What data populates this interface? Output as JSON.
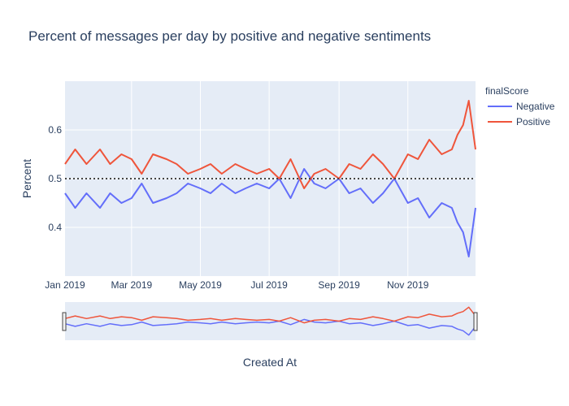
{
  "chart_data": {
    "type": "line",
    "title": "Percent of messages per day by positive and negative sentiments",
    "xlabel": "Created At",
    "ylabel": "Percent",
    "x_start": "2019-01-01",
    "x_end": "2019-12-31",
    "x_ticks": [
      {
        "date": "2019-01-01",
        "label": "Jan 2019"
      },
      {
        "date": "2019-03-01",
        "label": "Mar 2019"
      },
      {
        "date": "2019-05-01",
        "label": "May 2019"
      },
      {
        "date": "2019-07-01",
        "label": "Jul 2019"
      },
      {
        "date": "2019-09-01",
        "label": "Sep 2019"
      },
      {
        "date": "2019-11-01",
        "label": "Nov 2019"
      }
    ],
    "ylim": [
      0.3,
      0.7
    ],
    "y_ticks": [
      0.4,
      0.5,
      0.6
    ],
    "y_tick_labels": [
      "0.4",
      "0.5",
      "0.6"
    ],
    "reference_line": {
      "y": 0.5,
      "style": "dotted",
      "color": "#444444"
    },
    "legend": {
      "title": "finalScore",
      "position": "top-right"
    },
    "grid": true,
    "rangeslider": true,
    "series": [
      {
        "name": "Negative",
        "color": "#636efa",
        "x": [
          "2019-01-01",
          "2019-01-10",
          "2019-01-20",
          "2019-02-01",
          "2019-02-10",
          "2019-02-20",
          "2019-03-01",
          "2019-03-10",
          "2019-03-20",
          "2019-04-01",
          "2019-04-10",
          "2019-04-20",
          "2019-05-01",
          "2019-05-10",
          "2019-05-20",
          "2019-06-01",
          "2019-06-10",
          "2019-06-20",
          "2019-07-01",
          "2019-07-10",
          "2019-07-20",
          "2019-08-01",
          "2019-08-10",
          "2019-08-20",
          "2019-09-01",
          "2019-09-10",
          "2019-09-20",
          "2019-10-01",
          "2019-10-10",
          "2019-10-20",
          "2019-11-01",
          "2019-11-10",
          "2019-11-20",
          "2019-12-01",
          "2019-12-10",
          "2019-12-15",
          "2019-12-20",
          "2019-12-25",
          "2019-12-31"
        ],
        "y": [
          0.47,
          0.44,
          0.47,
          0.44,
          0.47,
          0.45,
          0.46,
          0.49,
          0.45,
          0.46,
          0.47,
          0.49,
          0.48,
          0.47,
          0.49,
          0.47,
          0.48,
          0.49,
          0.48,
          0.5,
          0.46,
          0.52,
          0.49,
          0.48,
          0.5,
          0.47,
          0.48,
          0.45,
          0.47,
          0.5,
          0.45,
          0.46,
          0.42,
          0.45,
          0.44,
          0.41,
          0.39,
          0.34,
          0.44
        ]
      },
      {
        "name": "Positive",
        "color": "#ef553b",
        "x": [
          "2019-01-01",
          "2019-01-10",
          "2019-01-20",
          "2019-02-01",
          "2019-02-10",
          "2019-02-20",
          "2019-03-01",
          "2019-03-10",
          "2019-03-20",
          "2019-04-01",
          "2019-04-10",
          "2019-04-20",
          "2019-05-01",
          "2019-05-10",
          "2019-05-20",
          "2019-06-01",
          "2019-06-10",
          "2019-06-20",
          "2019-07-01",
          "2019-07-10",
          "2019-07-20",
          "2019-08-01",
          "2019-08-10",
          "2019-08-20",
          "2019-09-01",
          "2019-09-10",
          "2019-09-20",
          "2019-10-01",
          "2019-10-10",
          "2019-10-20",
          "2019-11-01",
          "2019-11-10",
          "2019-11-20",
          "2019-12-01",
          "2019-12-10",
          "2019-12-15",
          "2019-12-20",
          "2019-12-25",
          "2019-12-31"
        ],
        "y": [
          0.53,
          0.56,
          0.53,
          0.56,
          0.53,
          0.55,
          0.54,
          0.51,
          0.55,
          0.54,
          0.53,
          0.51,
          0.52,
          0.53,
          0.51,
          0.53,
          0.52,
          0.51,
          0.52,
          0.5,
          0.54,
          0.48,
          0.51,
          0.52,
          0.5,
          0.53,
          0.52,
          0.55,
          0.53,
          0.5,
          0.55,
          0.54,
          0.58,
          0.55,
          0.56,
          0.59,
          0.61,
          0.66,
          0.56
        ]
      }
    ]
  }
}
